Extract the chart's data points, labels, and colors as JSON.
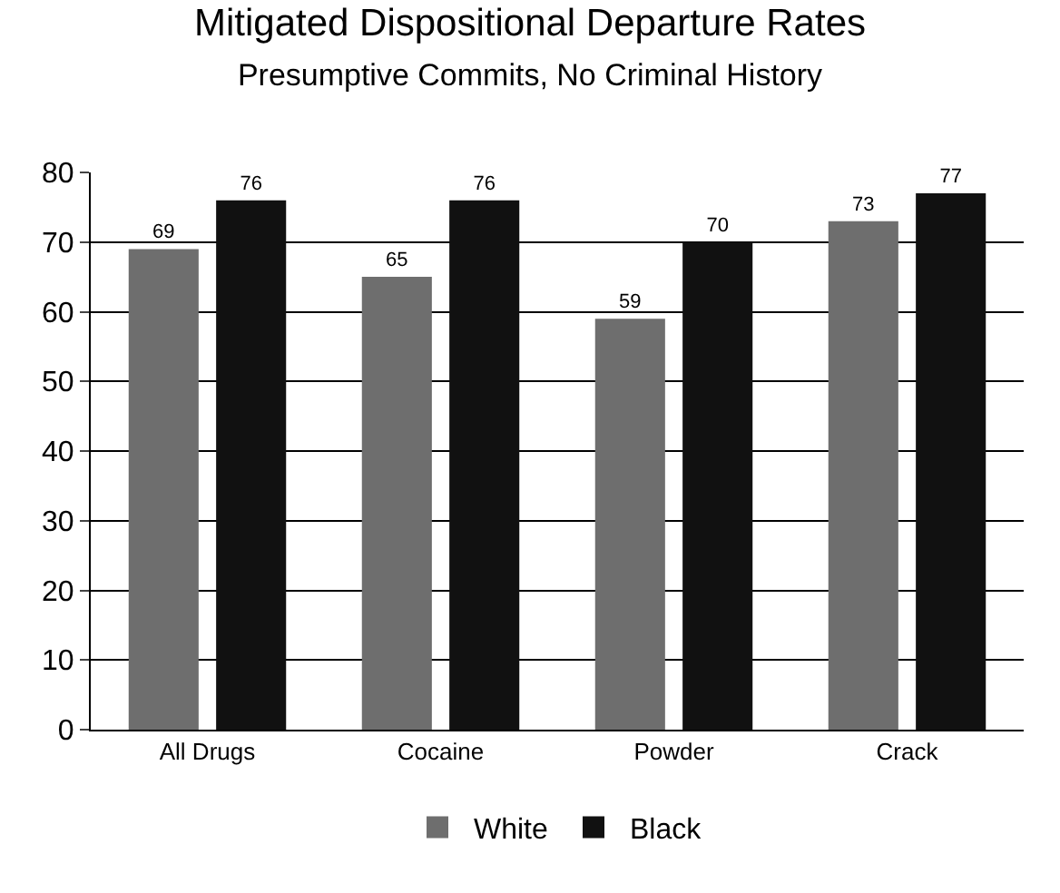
{
  "chart_data": {
    "type": "bar",
    "title": "Mitigated Dispositional Departure Rates",
    "subtitle": "Presumptive Commits, No Criminal History",
    "categories": [
      "All Drugs",
      "Cocaine",
      "Powder",
      "Crack"
    ],
    "series": [
      {
        "name": "White",
        "color": "#6e6e6e",
        "values": [
          69,
          65,
          59,
          73
        ]
      },
      {
        "name": "Black",
        "color": "#111111",
        "values": [
          76,
          76,
          70,
          77
        ]
      }
    ],
    "ylim": [
      0,
      80
    ],
    "yticks": [
      0,
      10,
      20,
      30,
      40,
      50,
      60,
      70,
      80
    ],
    "grid": "y",
    "legend": "bottom",
    "data_labels": true
  }
}
